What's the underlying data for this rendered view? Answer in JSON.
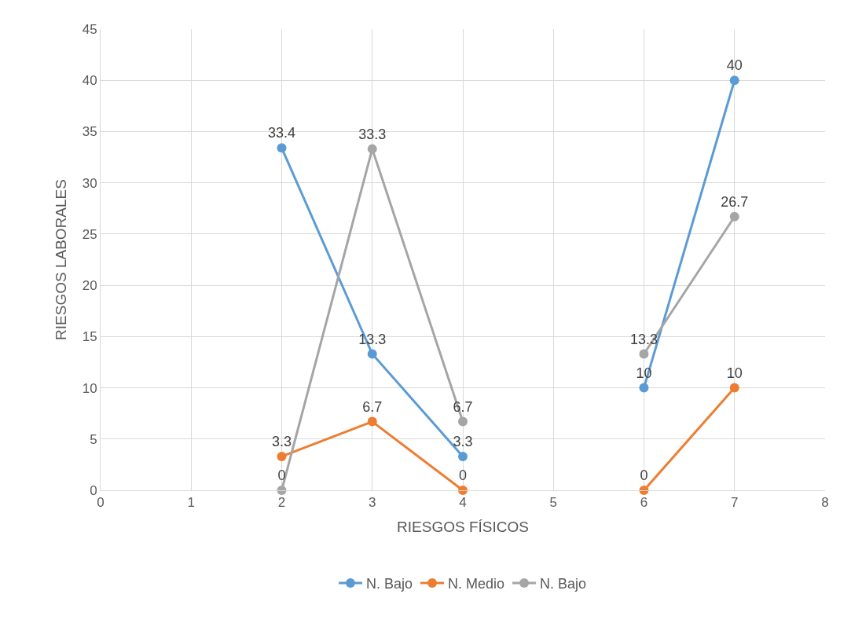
{
  "chart_data": {
    "type": "line",
    "xlabel": "RIESGOS FÍSICOS",
    "ylabel": "RIESGOS LABORALES",
    "x": [
      2,
      3,
      4,
      5,
      6,
      7
    ],
    "series": [
      {
        "name": "N. Bajo",
        "color": "#5b9bd5",
        "values": [
          33.4,
          13.3,
          3.3,
          null,
          10,
          40
        ]
      },
      {
        "name": "N. Medio",
        "color": "#ed7d31",
        "values": [
          3.3,
          6.7,
          0,
          null,
          0,
          10
        ]
      },
      {
        "name": "N. Bajo",
        "color": "#a5a5a5",
        "values": [
          0,
          33.3,
          6.7,
          null,
          13.3,
          26.7
        ]
      }
    ],
    "xlim": [
      0,
      8
    ],
    "xticks": [
      0,
      1,
      2,
      3,
      4,
      5,
      6,
      7,
      8
    ],
    "ylim": [
      0,
      45
    ],
    "yticks": [
      0,
      5,
      10,
      15,
      20,
      25,
      30,
      35,
      40,
      45
    ],
    "grid": true,
    "legend": "bottom",
    "marker": "circle",
    "line_style": "solid",
    "data_labels": true
  }
}
